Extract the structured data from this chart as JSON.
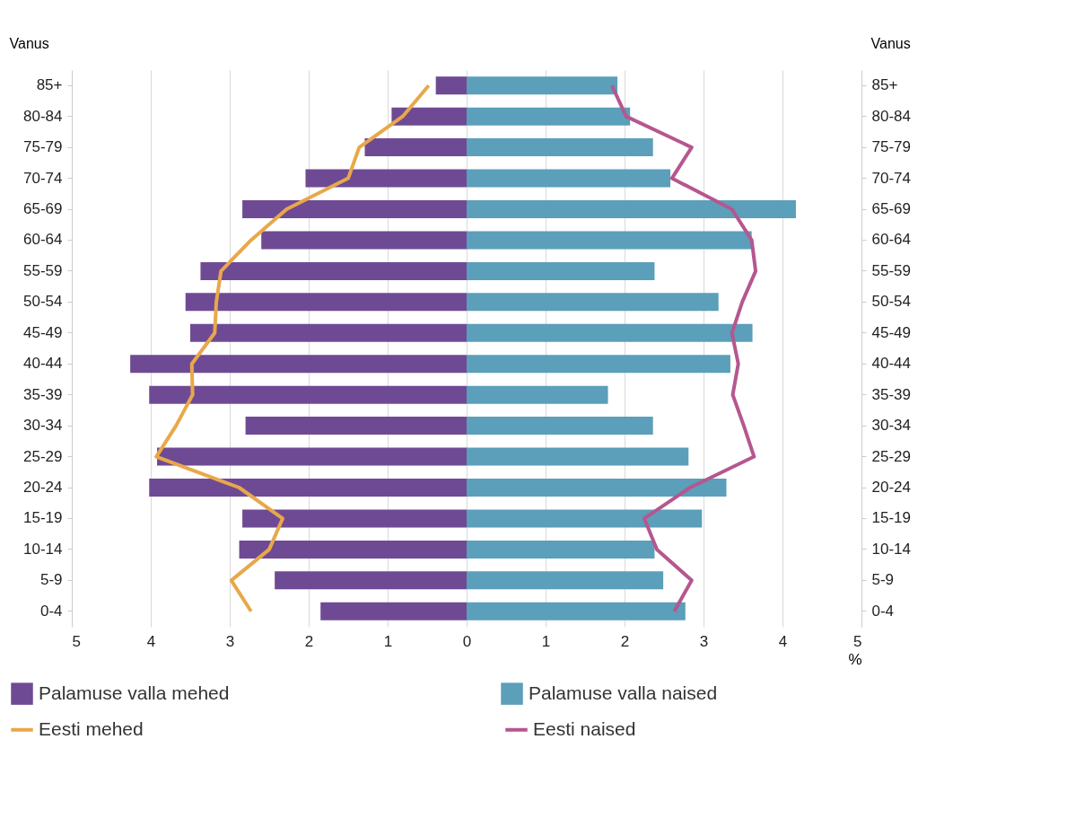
{
  "chart_data": {
    "type": "bar",
    "orientation": "horizontal",
    "stacked": true,
    "ylabel": "Vanus",
    "y2label": "Vanus",
    "xlabel": "%",
    "categories": [
      "85+",
      "80-84",
      "75-79",
      "70-74",
      "65-69",
      "60-64",
      "55-59",
      "50-54",
      "45-49",
      "40-44",
      "35-39",
      "30-34",
      "25-29",
      "20-24",
      "15-19",
      "10-14",
      "5-9",
      "0-4"
    ],
    "series": [
      {
        "name": "Palamuse valla mehed",
        "color": "#6f4a94",
        "values": [
          -0.39,
          -0.95,
          -1.29,
          -2.04,
          -2.84,
          -2.6,
          -3.37,
          -3.56,
          -3.5,
          -4.26,
          -4.02,
          -2.8,
          -3.92,
          -4.02,
          -2.84,
          -2.88,
          -2.43,
          -1.85
        ]
      },
      {
        "name": "Palamuse valla naised",
        "color": "#5b9fba",
        "values": [
          1.91,
          2.07,
          2.36,
          2.58,
          4.17,
          3.61,
          2.38,
          3.19,
          3.62,
          3.34,
          1.79,
          2.36,
          2.81,
          3.29,
          2.98,
          2.38,
          2.49,
          2.77
        ]
      },
      {
        "name": "Eesti mehed",
        "type": "line",
        "color": "#e8a84a",
        "values": [
          -0.48,
          -0.81,
          -1.36,
          -1.5,
          -2.28,
          -2.73,
          -3.11,
          -3.17,
          -3.19,
          -3.48,
          -3.47,
          -3.68,
          -3.93,
          -2.88,
          -2.33,
          -2.5,
          -2.98,
          -2.73
        ]
      },
      {
        "name": "Eesti naised",
        "type": "line",
        "color": "#b5578f",
        "values": [
          1.84,
          2.02,
          2.85,
          2.6,
          3.36,
          3.61,
          3.66,
          3.49,
          3.36,
          3.44,
          3.37,
          3.51,
          3.64,
          2.83,
          2.25,
          2.41,
          2.85,
          2.63
        ]
      }
    ],
    "xlim": [
      -5,
      5
    ],
    "xticks": [
      {
        "value": -5,
        "label": "5"
      },
      {
        "value": -4,
        "label": "4"
      },
      {
        "value": -3,
        "label": "3"
      },
      {
        "value": -2,
        "label": "2"
      },
      {
        "value": -1,
        "label": "1"
      },
      0,
      1,
      2,
      3,
      4,
      5
    ],
    "grid": "x",
    "legend": "bottom"
  }
}
